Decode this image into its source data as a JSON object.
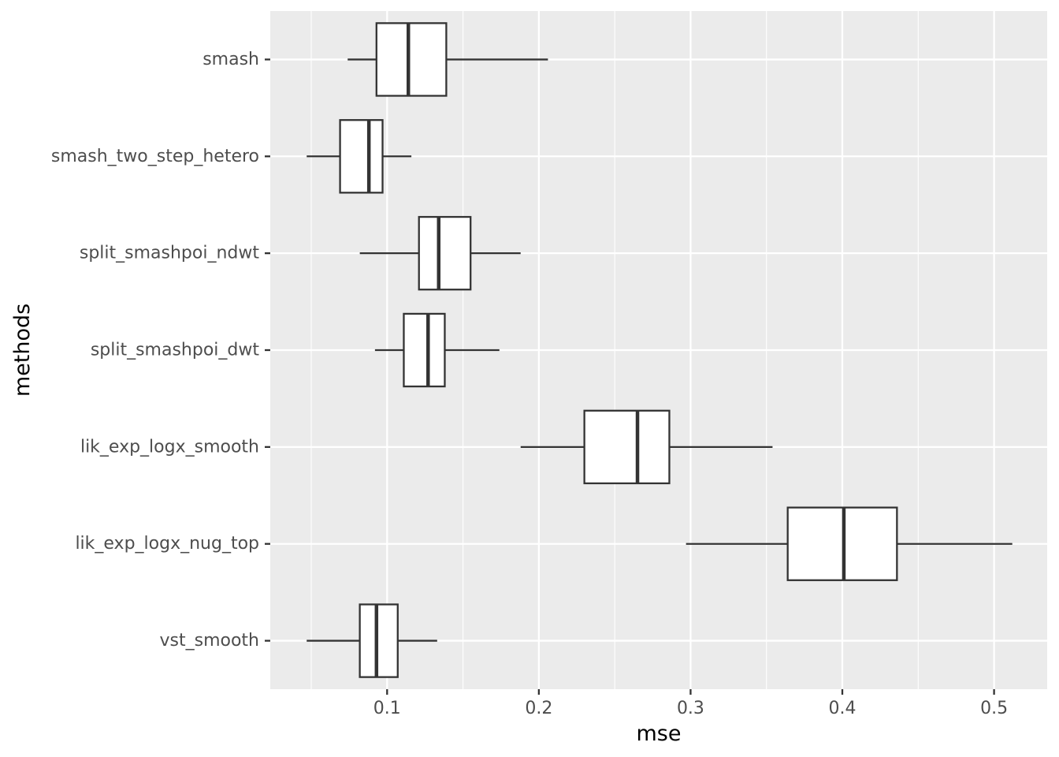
{
  "chart_data": {
    "type": "boxplot",
    "orientation": "horizontal",
    "title": "",
    "xlabel": "mse",
    "ylabel": "methods",
    "xlim": [
      0.023,
      0.535
    ],
    "x_ticks": [
      0.1,
      0.2,
      0.3,
      0.4,
      0.5
    ],
    "x_tick_labels": [
      "0.1",
      "0.2",
      "0.3",
      "0.4",
      "0.5"
    ],
    "grid": true,
    "legend": "none",
    "panel_background": "#ebebeb",
    "box_fill": "#ffffff",
    "line_color": "#333333",
    "categories": [
      "smash",
      "smash_two_step_hetero",
      "split_smashpoi_ndwt",
      "split_smashpoi_dwt",
      "lik_exp_logx_smooth",
      "lik_exp_logx_nug_top",
      "vst_smooth"
    ],
    "boxes": [
      {
        "method": "smash",
        "whisker_low": 0.074,
        "q1": 0.093,
        "median": 0.114,
        "q3": 0.139,
        "whisker_high": 0.206
      },
      {
        "method": "smash_two_step_hetero",
        "whisker_low": 0.047,
        "q1": 0.069,
        "median": 0.088,
        "q3": 0.097,
        "whisker_high": 0.116
      },
      {
        "method": "split_smashpoi_ndwt",
        "whisker_low": 0.082,
        "q1": 0.121,
        "median": 0.134,
        "q3": 0.155,
        "whisker_high": 0.188
      },
      {
        "method": "split_smashpoi_dwt",
        "whisker_low": 0.092,
        "q1": 0.111,
        "median": 0.127,
        "q3": 0.138,
        "whisker_high": 0.174
      },
      {
        "method": "lik_exp_logx_smooth",
        "whisker_low": 0.188,
        "q1": 0.23,
        "median": 0.265,
        "q3": 0.286,
        "whisker_high": 0.354
      },
      {
        "method": "lik_exp_logx_nug_top",
        "whisker_low": 0.297,
        "q1": 0.364,
        "median": 0.401,
        "q3": 0.436,
        "whisker_high": 0.512
      },
      {
        "method": "vst_smooth",
        "whisker_low": 0.047,
        "q1": 0.082,
        "median": 0.093,
        "q3": 0.107,
        "whisker_high": 0.133
      }
    ]
  }
}
